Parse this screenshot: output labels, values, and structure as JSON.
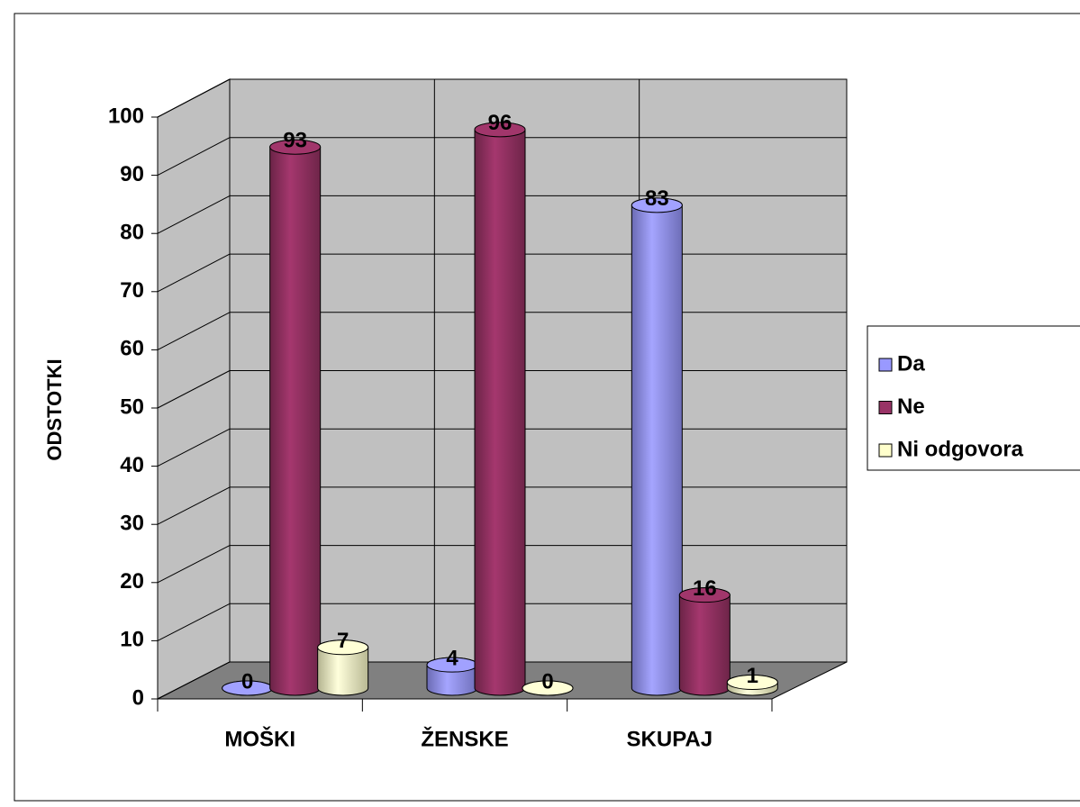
{
  "chart_data": {
    "type": "bar3d",
    "ylabel": "ODSTOTKI",
    "categories": [
      "MOŠKI",
      "ŽENSKE",
      "SKUPAJ"
    ],
    "series": [
      {
        "name": "Da",
        "color": "#9999ff",
        "values": [
          0,
          4,
          83
        ]
      },
      {
        "name": "Ne",
        "color": "#993366",
        "values": [
          93,
          96,
          16
        ]
      },
      {
        "name": "Ni odgovora",
        "color": "#ffffcc",
        "values": [
          7,
          0,
          1
        ]
      }
    ],
    "ylim": [
      0,
      100
    ],
    "yticks": [
      0,
      10,
      20,
      30,
      40,
      50,
      60,
      70,
      80,
      90,
      100
    ],
    "grid": true,
    "legend": "right"
  }
}
